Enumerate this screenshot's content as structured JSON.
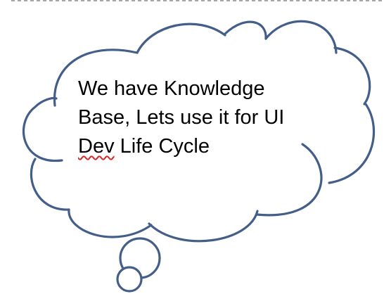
{
  "slide": {
    "callout": {
      "line1": "We have Knowledge",
      "line2": "Base,  Lets use it for UI",
      "line3_flagged_word": "Dev",
      "line3_rest": " Life Cycle"
    }
  },
  "colors": {
    "cloud_stroke": "#445e8a",
    "cloud_fill": "#ffffff",
    "spellcheck_underline": "#d22a2a",
    "text": "#000000",
    "dashed_border": "#a6a6a6"
  }
}
